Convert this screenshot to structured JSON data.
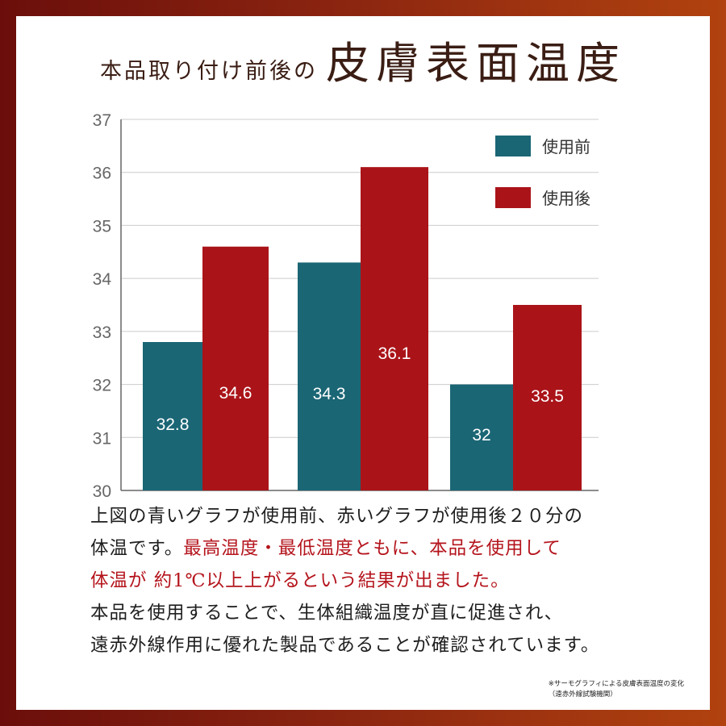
{
  "title": {
    "prefix": "本品取り付け前後の",
    "main": "皮膚表面温度"
  },
  "colors": {
    "before": "#1a6675",
    "after": "#aa1419",
    "axis": "#666666",
    "grid": "#cccccc"
  },
  "chart_data": {
    "type": "bar",
    "categories": [
      "",
      "",
      ""
    ],
    "series": [
      {
        "name": "使用前",
        "values": [
          32.8,
          34.3,
          32
        ],
        "labels": [
          "32.8",
          "34.3",
          "32"
        ]
      },
      {
        "name": "使用後",
        "values": [
          34.6,
          36.1,
          33.5
        ],
        "labels": [
          "34.6",
          "36.1",
          "33.5"
        ]
      }
    ],
    "ylim": [
      30,
      37
    ],
    "yticks": [
      "30",
      "31",
      "32",
      "33",
      "34",
      "35",
      "36",
      "37"
    ],
    "grid": true,
    "legend": "top-right"
  },
  "description": {
    "line1": "上図の青いグラフが使用前、赤いグラフが使用後２０分の",
    "line2_normal": "体温です。",
    "line2_red": "最高温度・最低温度ともに、本品を使用して",
    "line3_red": "体温が 約1℃以上上がるという結果が出ました。",
    "line4": "本品を使用することで、生体組織温度が直に促進され、",
    "line5": "遠赤外線作用に優れた製品であることが確認されています。"
  },
  "note": {
    "line1": "※サーモグラフィによる皮膚表面温度の変化",
    "line2": "（遠赤外線試験機関）"
  }
}
